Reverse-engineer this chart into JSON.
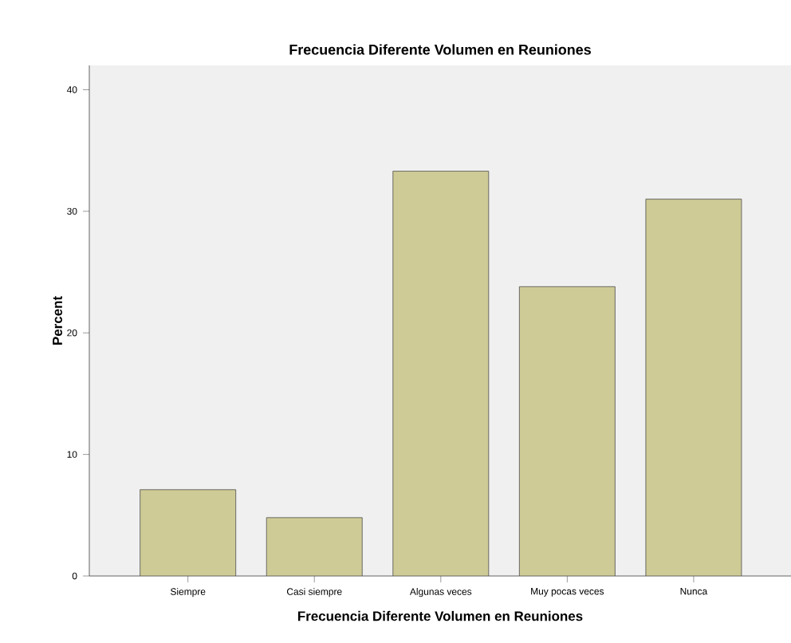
{
  "chart_data": {
    "type": "bar",
    "title": "Frecuencia Diferente Volumen en Reuniones",
    "xlabel": "Frecuencia Diferente Volumen en Reuniones",
    "ylabel": "Percent",
    "categories": [
      "Siempre",
      "Casi siempre",
      "Algunas veces",
      "Muy pocas veces",
      "Nunca"
    ],
    "values": [
      7.1,
      4.8,
      33.3,
      23.8,
      31.0
    ],
    "color": "#cfcb96",
    "ylim": [
      0,
      42
    ],
    "yticks": [
      0,
      10,
      20,
      30,
      40
    ],
    "grid": false
  }
}
